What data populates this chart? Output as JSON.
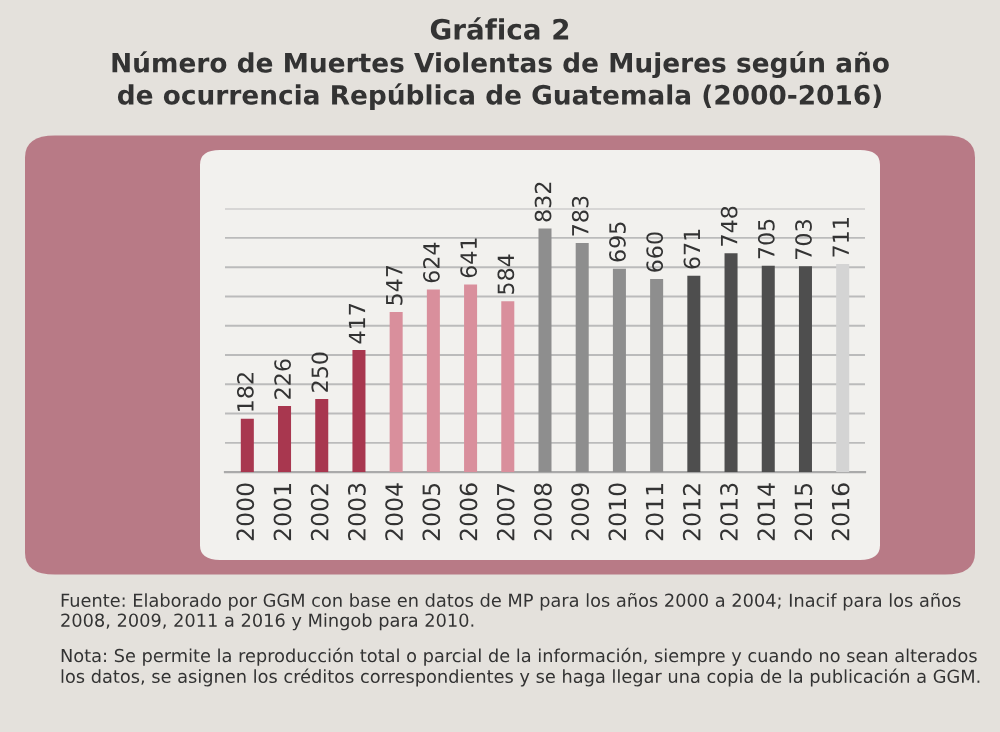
{
  "chart_data": {
    "type": "bar",
    "title": "Gráfica 2",
    "subtitle": "Número de Muertes Violentas de Mujeres según año\nde ocurrencia República de Guatemala (2000-2016)",
    "categories": [
      "2000",
      "2001",
      "2002",
      "2003",
      "2004",
      "2005",
      "2006",
      "2007",
      "2008",
      "2009",
      "2010",
      "2011",
      "2012",
      "2013",
      "2014",
      "2015",
      "2016"
    ],
    "values": [
      182,
      226,
      250,
      417,
      547,
      624,
      641,
      584,
      832,
      783,
      695,
      660,
      671,
      748,
      705,
      703,
      711
    ],
    "colors": [
      "#a8374f",
      "#a8374f",
      "#a8374f",
      "#a8374f",
      "#d98f9c",
      "#d98f9c",
      "#d98f9c",
      "#d98f9c",
      "#8e8e8e",
      "#8e8e8e",
      "#8e8e8e",
      "#8e8e8e",
      "#4e4e4e",
      "#4e4e4e",
      "#4e4e4e",
      "#4e4e4e",
      "#d4d4d4"
    ],
    "ylim": [
      0,
      900
    ],
    "yticks": [
      {
        "value": 0,
        "label": null
      },
      {
        "value": 100,
        "label": null
      },
      {
        "value": 200,
        "label": null
      },
      {
        "value": 300,
        "label": null
      },
      {
        "value": 400,
        "label": null
      },
      {
        "value": 500,
        "label": null
      },
      {
        "value": 600,
        "label": null
      },
      {
        "value": 700,
        "label": null
      },
      {
        "value": 800,
        "label": null
      },
      {
        "value": 900,
        "label": null
      }
    ],
    "grid": "y",
    "data_labels": true,
    "tick_labels": "x",
    "annotations": [
      "Fuente: Elaborado por GGM con base en datos de MP para los años 2000 a 2004; Inacif para los años 2008, 2009, 2011 a 2016 y Mingob para 2010.",
      "Nota: Se permite la reproducción total o parcial de la información, siempre y cuando no sean alterados los datos, se asignen los créditos correspondientes y se haga llegar una copia de la publicación a GGM."
    ]
  }
}
